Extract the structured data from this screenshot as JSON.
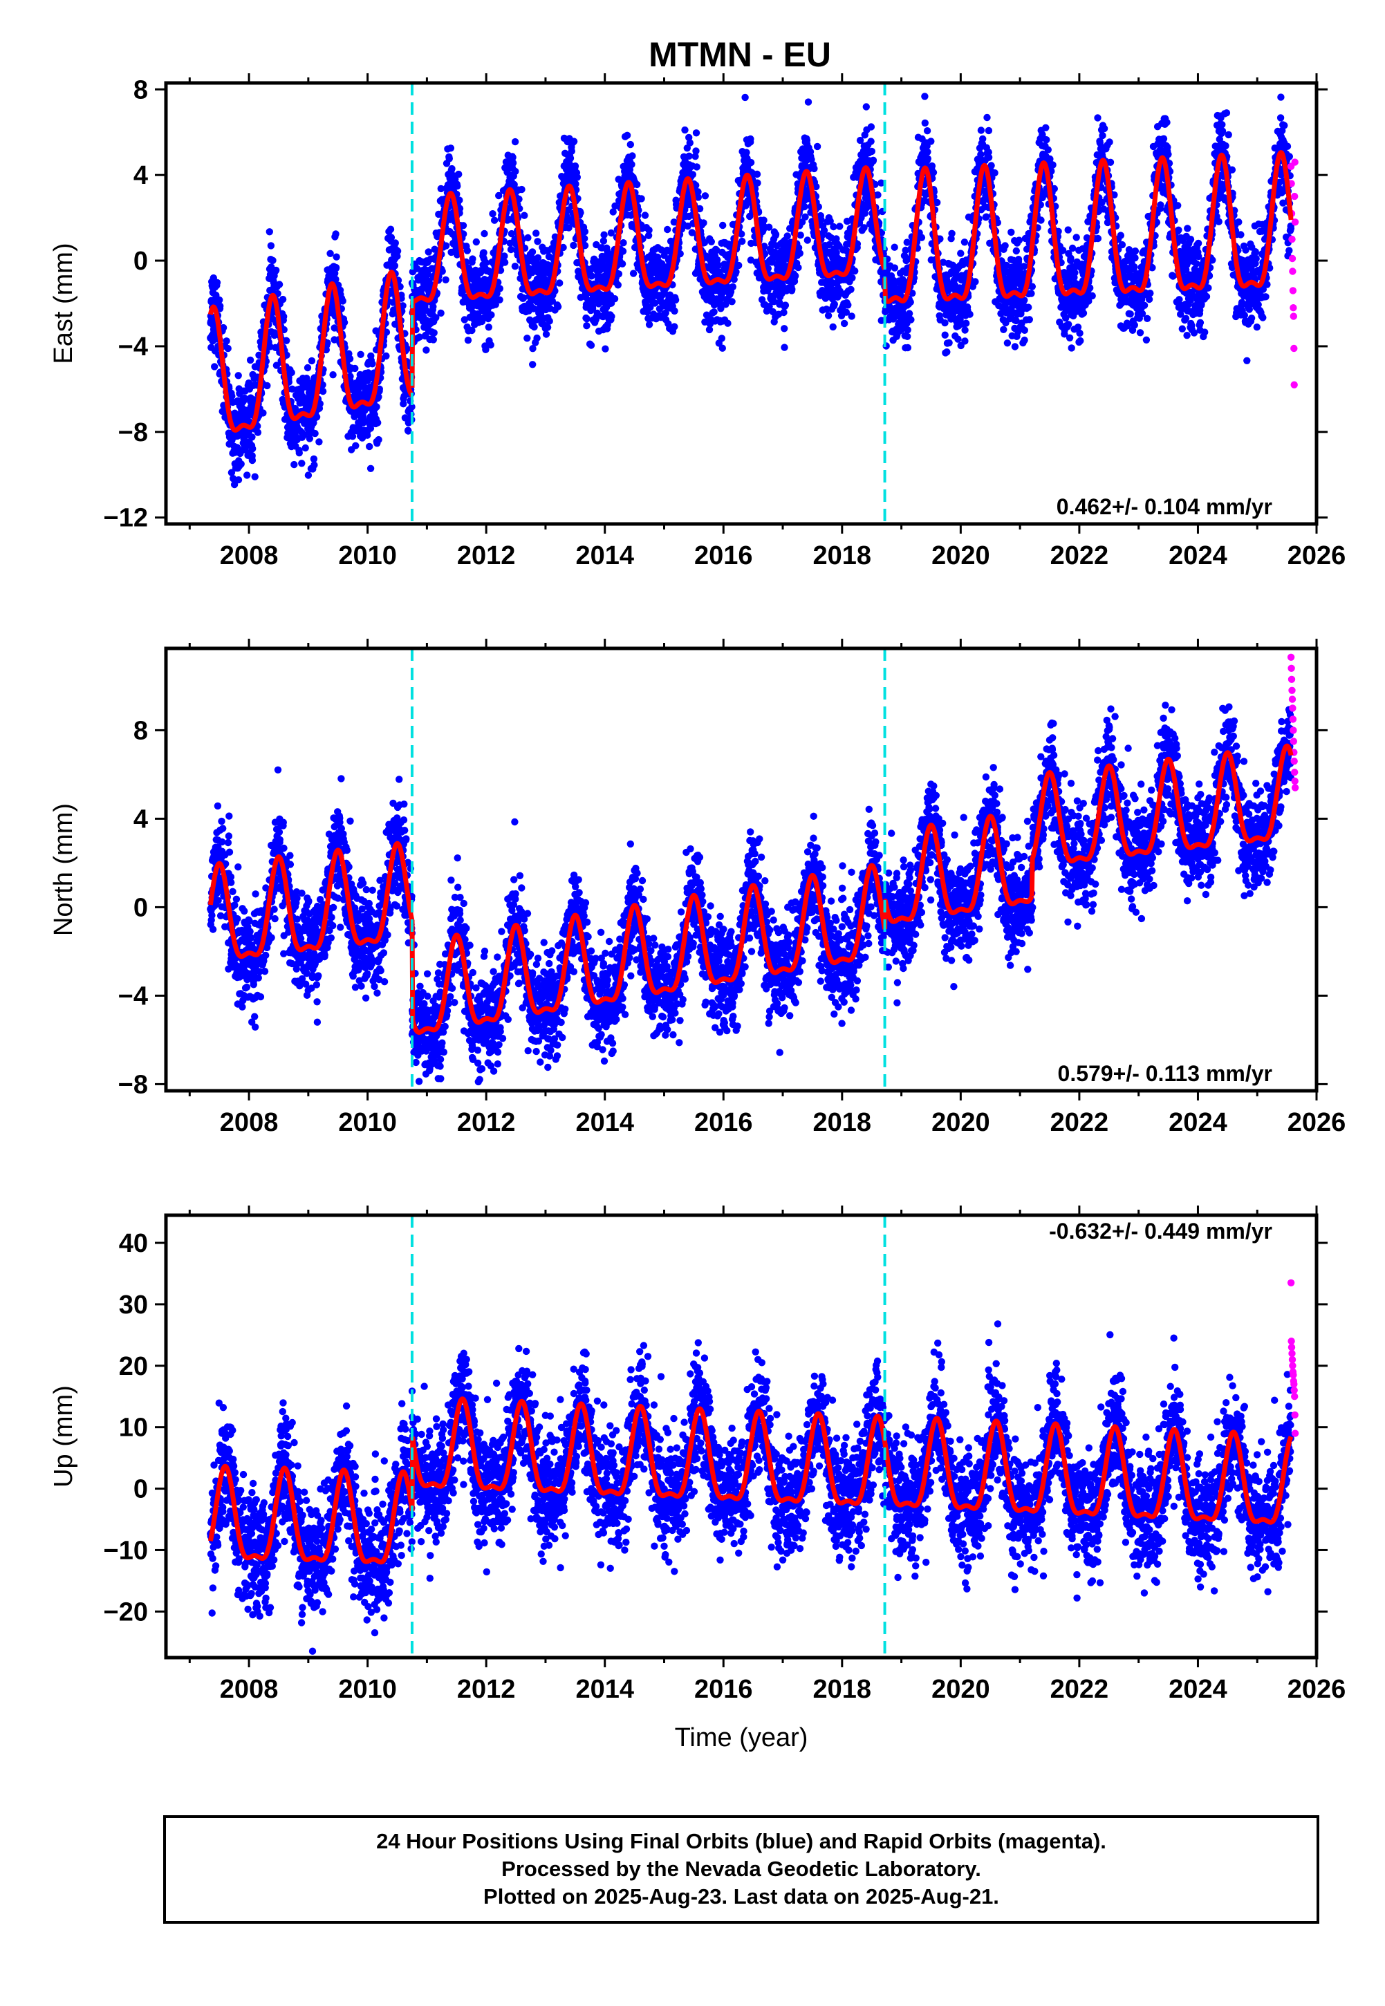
{
  "title": "MTMN - EU",
  "colors": {
    "final": "#0000ff",
    "rapid": "#ff00ff",
    "model": "#ff0000",
    "offset": "#00e0e0",
    "frame": "#000000"
  },
  "footer": {
    "line1": "24 Hour Positions Using Final Orbits (blue) and Rapid Orbits (magenta).",
    "line2": "Processed by the Nevada Geodetic Laboratory.",
    "line3": "Plotted on 2025-Aug-23. Last data on 2025-Aug-21."
  },
  "chart_data": [
    {
      "type": "scatter",
      "panel": "east",
      "ylabel": "East (mm)",
      "xlabel": "",
      "xlim": [
        2006.6,
        2026.0
      ],
      "ylim": [
        -12.3,
        8.3
      ],
      "yticks": [
        -12,
        -8,
        -4,
        0,
        4,
        8
      ],
      "xticks": [
        2008,
        2010,
        2012,
        2014,
        2016,
        2018,
        2020,
        2022,
        2024,
        2026
      ],
      "rate_text": "0.462+/- 0.104 mm/yr",
      "rate_position": "bottom-right",
      "offset_epochs": [
        2010.75,
        2018.72
      ],
      "data_span": [
        2007.35,
        2025.57
      ],
      "rapid_span": [
        2025.57,
        2025.64
      ],
      "model": {
        "amp_pre": 2.9,
        "amp_post": 2.4,
        "amp_last": 3.0,
        "phase_peak": 0.4,
        "segments": [
          {
            "t0": 2007.35,
            "t1": 2010.75,
            "v0": -6.1,
            "slope": 0.54
          },
          {
            "t0": 2010.75,
            "t1": 2018.72,
            "v0": -0.2,
            "slope": 0.17
          },
          {
            "t0": 2018.72,
            "t1": 2025.57,
            "v0": 0.2,
            "slope": 0.12
          }
        ]
      },
      "noise": 1.05,
      "rapid_values": [
        4.4,
        3.6,
        2.2,
        1.0,
        0.1,
        -0.5,
        -1.4,
        -2.2,
        -2.6,
        -4.1,
        -5.8,
        3.0,
        4.6,
        1.8
      ]
    },
    {
      "type": "scatter",
      "panel": "north",
      "ylabel": "North (mm)",
      "xlabel": "",
      "xlim": [
        2006.6,
        2026.0
      ],
      "ylim": [
        -8.3,
        11.7
      ],
      "yticks": [
        -8,
        -4,
        0,
        4,
        8
      ],
      "xticks": [
        2008,
        2010,
        2012,
        2014,
        2016,
        2018,
        2020,
        2022,
        2024,
        2026
      ],
      "rate_text": "0.579+/- 0.113 mm/yr",
      "rate_position": "bottom-right",
      "offset_epochs": [
        2010.75,
        2018.72
      ],
      "data_span": [
        2007.35,
        2025.57
      ],
      "rapid_span": [
        2025.57,
        2025.64
      ],
      "model": {
        "amp_pre": 2.1,
        "amp_post": 2.0,
        "amp_last": 2.0,
        "phase_peak": 0.5,
        "segments": [
          {
            "t0": 2007.35,
            "t1": 2010.75,
            "v0": -0.9,
            "slope": 0.3
          },
          {
            "t0": 2010.75,
            "t1": 2018.72,
            "v0": -4.3,
            "slope": 0.45
          },
          {
            "t0": 2018.72,
            "t1": 2021.2,
            "v0": 0.7,
            "slope": 0.4
          },
          {
            "t0": 2021.2,
            "t1": 2025.57,
            "v0": 3.3,
            "slope": 0.3
          }
        ]
      },
      "noise": 1.1,
      "rapid_values": [
        11.3,
        10.8,
        10.3,
        9.8,
        9.4,
        9.0,
        8.5,
        8.0,
        7.5,
        7.0,
        6.6,
        6.1,
        5.7,
        5.4
      ]
    },
    {
      "type": "scatter",
      "panel": "up",
      "ylabel": "Up (mm)",
      "xlabel": "Time (year)",
      "xlim": [
        2006.6,
        2026.0
      ],
      "ylim": [
        -27.5,
        44.5
      ],
      "yticks": [
        -20,
        -10,
        0,
        10,
        20,
        30,
        40
      ],
      "xticks": [
        2008,
        2010,
        2012,
        2014,
        2016,
        2018,
        2020,
        2022,
        2024,
        2026
      ],
      "rate_text": "-0.632+/- 0.449 mm/yr",
      "rate_position": "top-right",
      "offset_epochs": [
        2010.75,
        2018.72
      ],
      "data_span": [
        2007.35,
        2025.57
      ],
      "rapid_span": [
        2025.57,
        2025.64
      ],
      "model": {
        "amp_pre": 7.2,
        "amp_post": 7.0,
        "amp_last": 7.0,
        "phase_peak": 0.6,
        "segments": [
          {
            "t0": 2007.35,
            "t1": 2010.75,
            "v0": -6.0,
            "slope": -0.3
          },
          {
            "t0": 2010.75,
            "t1": 2018.72,
            "v0": 5.5,
            "slope": -0.4
          },
          {
            "t0": 2018.72,
            "t1": 2025.57,
            "v0": 2.4,
            "slope": -0.45
          }
        ]
      },
      "noise": 4.5,
      "rapid_values": [
        33.5,
        24.0,
        23.0,
        22.0,
        21.0,
        20.0,
        19.0,
        18.5,
        17.5,
        17.0,
        16.0,
        15.0,
        12.0,
        9.0
      ]
    }
  ]
}
